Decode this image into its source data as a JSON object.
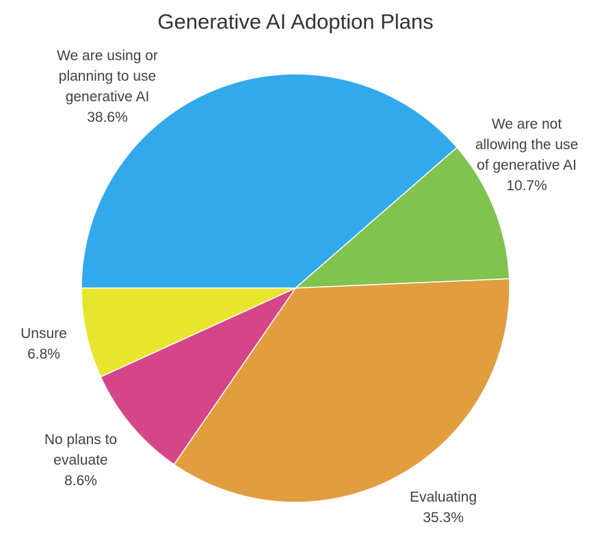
{
  "chart_data": {
    "type": "pie",
    "title": "Generative AI Adoption Plans",
    "slices": [
      {
        "label_lines": [
          "We are using or",
          "planning to use",
          "generative AI"
        ],
        "percent_label": "38.6%",
        "value": 38.6,
        "color": "#31A9EB"
      },
      {
        "label_lines": [
          "We are not",
          "allowing the use",
          "of generative AI"
        ],
        "percent_label": "10.7%",
        "value": 10.7,
        "color": "#80C34E"
      },
      {
        "label_lines": [
          "Evaluating"
        ],
        "percent_label": "35.3%",
        "value": 35.3,
        "color": "#E29D3F"
      },
      {
        "label_lines": [
          "No plans to",
          "evaluate"
        ],
        "percent_label": "8.6%",
        "value": 8.6,
        "color": "#D44687"
      },
      {
        "label_lines": [
          "Unsure"
        ],
        "percent_label": "6.8%",
        "value": 6.8,
        "color": "#E8E52E"
      }
    ],
    "start_direction": "left",
    "direction": "clockwise"
  }
}
